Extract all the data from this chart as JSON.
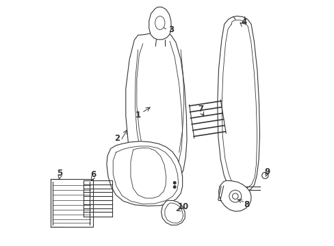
{
  "title": "",
  "background_color": "#ffffff",
  "line_color": "#333333",
  "label_color": "#000000",
  "figsize": [
    4.89,
    3.6
  ],
  "dpi": 100
}
